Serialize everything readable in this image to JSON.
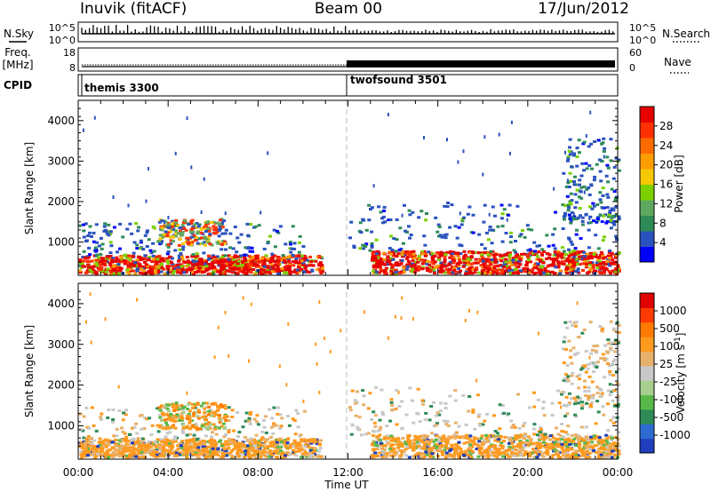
{
  "header": {
    "station": "Inuvik (fitACF)",
    "beam": "Beam 00",
    "date": "17/Jun/2012"
  },
  "nsky_panel": {
    "left_label": "N.Sky",
    "left_ticks": [
      "10^5",
      "10^0"
    ],
    "right_ticks": [
      "10^5",
      "10^0"
    ],
    "right_label": "N.Search",
    "right_label_style": "dotted"
  },
  "freq_panel": {
    "left_label_line1": "Freq.",
    "left_label_line2": "[MHz]",
    "left_ticks": [
      "18",
      "8"
    ],
    "right_ticks": [
      "60",
      "0"
    ],
    "right_label": "Nave",
    "right_label_style": "dotted"
  },
  "cpid_panel": {
    "label": "CPID",
    "programs": [
      {
        "name": "themis 3300",
        "start_hour": 0
      },
      {
        "name": "twofsound 3501",
        "start_hour": 12
      }
    ]
  },
  "power_panel": {
    "ylabel": "Slant Range [km]",
    "yticks": [
      "4000",
      "3000",
      "2000",
      "1000"
    ],
    "colorbar_label": "Power [dB]",
    "colorbar_ticks": [
      "28",
      "24",
      "20",
      "16",
      "12",
      "8",
      "4"
    ],
    "colors": [
      "#0000ff",
      "#2a52be",
      "#2e8b57",
      "#5fa85f",
      "#7cd000",
      "#f5c800",
      "#ff9d00",
      "#ff6a00",
      "#ff3000",
      "#e60000"
    ]
  },
  "velocity_panel": {
    "ylabel": "Slant Range [km]",
    "yticks": [
      "4000",
      "3000",
      "2000",
      "1000"
    ],
    "colorbar_label": "Velocity [m s",
    "colorbar_label_sup": "-1",
    "colorbar_label_end": "]",
    "colorbar_ticks": [
      "1000",
      "500",
      "100",
      "25",
      "-25",
      "-100",
      "-500",
      "-1000"
    ],
    "colors": [
      "#1f3fbf",
      "#2e6bd0",
      "#2e8b57",
      "#58b84a",
      "#a7cf8f",
      "#c8c8c8",
      "#e7b16b",
      "#ff9a1f",
      "#ff7a00",
      "#ff3a00",
      "#e00000"
    ]
  },
  "time_axis": {
    "label": "Time UT",
    "ticks": [
      "00:00",
      "04:00",
      "08:00",
      "12:00",
      "16:00",
      "20:00",
      "00:00"
    ]
  },
  "chart_data": {
    "type": "heatmap",
    "title": "Inuvik (fitACF) Beam 00 17/Jun/2012",
    "x_label": "Time UT",
    "x_range_hours": [
      0,
      24
    ],
    "y_label": "Slant Range [km]",
    "y_range_km": [
      180,
      4500
    ],
    "power_scale_db": [
      0,
      30
    ],
    "velocity_scale_ms": [
      -1000,
      1000
    ],
    "scatter_regions": [
      {
        "panel": "power",
        "t": [
          0.0,
          10.8
        ],
        "r": [
          250,
          700
        ],
        "level": "high"
      },
      {
        "panel": "power",
        "t": [
          0.0,
          10.0
        ],
        "r": [
          700,
          1500
        ],
        "level": "low"
      },
      {
        "panel": "power",
        "t": [
          3.5,
          6.5
        ],
        "r": [
          950,
          1600
        ],
        "level": "medium"
      },
      {
        "panel": "power",
        "t": [
          13.0,
          24.0
        ],
        "r": [
          250,
          800
        ],
        "level": "high"
      },
      {
        "panel": "power",
        "t": [
          12.0,
          24.0
        ],
        "r": [
          800,
          2000
        ],
        "level": "low"
      },
      {
        "panel": "power",
        "t": [
          21.5,
          24.0
        ],
        "r": [
          1500,
          3600
        ],
        "level": "low"
      }
    ],
    "grid": false,
    "legend": "right colorbars"
  }
}
